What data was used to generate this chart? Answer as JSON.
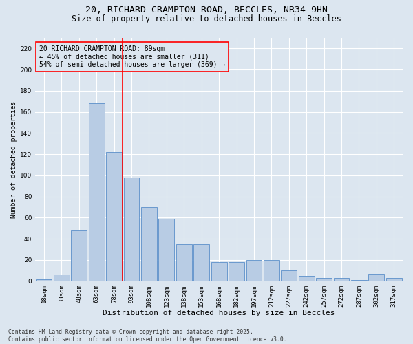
{
  "title_line1": "20, RICHARD CRAMPTON ROAD, BECCLES, NR34 9HN",
  "title_line2": "Size of property relative to detached houses in Beccles",
  "xlabel": "Distribution of detached houses by size in Beccles",
  "ylabel": "Number of detached properties",
  "categories": [
    "18sqm",
    "33sqm",
    "48sqm",
    "63sqm",
    "78sqm",
    "93sqm",
    "108sqm",
    "123sqm",
    "138sqm",
    "153sqm",
    "168sqm",
    "182sqm",
    "197sqm",
    "212sqm",
    "227sqm",
    "242sqm",
    "257sqm",
    "272sqm",
    "287sqm",
    "302sqm",
    "317sqm"
  ],
  "values": [
    2,
    6,
    48,
    168,
    122,
    98,
    70,
    59,
    35,
    35,
    18,
    18,
    20,
    20,
    10,
    5,
    3,
    3,
    1,
    7,
    3
  ],
  "bar_color": "#b8cce4",
  "bar_edge_color": "#5b8fc9",
  "vline_x": 4.5,
  "vline_color": "red",
  "annotation_box_text": "20 RICHARD CRAMPTON ROAD: 89sqm\n← 45% of detached houses are smaller (311)\n54% of semi-detached houses are larger (369) →",
  "annotation_box_color": "red",
  "annotation_text_color": "black",
  "annotation_fontsize": 7,
  "ylim": [
    0,
    230
  ],
  "yticks": [
    0,
    20,
    40,
    60,
    80,
    100,
    120,
    140,
    160,
    180,
    200,
    220
  ],
  "background_color": "#dce6f0",
  "footer_text": "Contains HM Land Registry data © Crown copyright and database right 2025.\nContains public sector information licensed under the Open Government Licence v3.0.",
  "title_fontsize": 9.5,
  "subtitle_fontsize": 8.5,
  "xlabel_fontsize": 8,
  "ylabel_fontsize": 7,
  "tick_fontsize": 6.5,
  "footer_fontsize": 5.8
}
